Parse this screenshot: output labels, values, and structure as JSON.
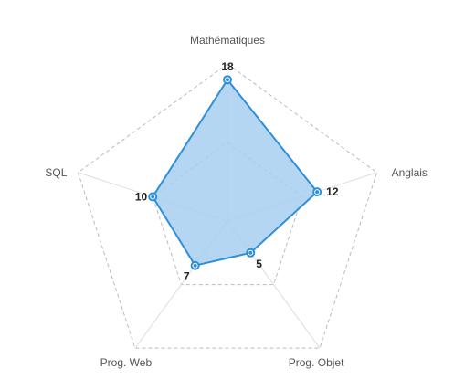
{
  "chart_data": {
    "type": "radar",
    "categories": [
      "Mathématiques",
      "Anglais",
      "Prog. Objet",
      "Prog. Web",
      "SQL"
    ],
    "series": [
      {
        "values": [
          18,
          12,
          5,
          7,
          10
        ]
      }
    ],
    "rlim": [
      0,
      20
    ],
    "grid": true,
    "legend": "none",
    "colors": {
      "line": "#2f8fd8",
      "fill": "#a7cff0",
      "grid": "#bbbbbb",
      "spoke": "#dddddd"
    }
  }
}
